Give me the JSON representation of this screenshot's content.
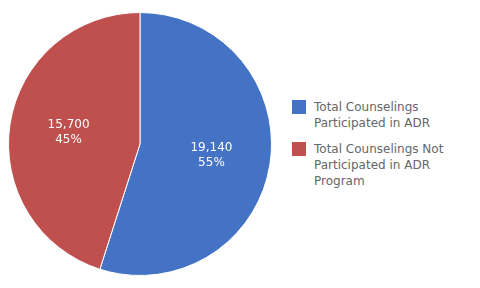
{
  "chart_data": {
    "type": "pie",
    "categories": [
      "Total Counselings\nParticipated in ADR",
      "Total Counselings Not\nParticipated in ADR\nProgram"
    ],
    "values": [
      19140,
      15700
    ],
    "value_labels": [
      "19,140",
      "15,700"
    ],
    "percentages": [
      55,
      45
    ],
    "percentage_labels": [
      "55%",
      "45%"
    ],
    "colors": [
      "#4472C4",
      "#C0504D"
    ],
    "data_labels": true,
    "legend": "right"
  }
}
